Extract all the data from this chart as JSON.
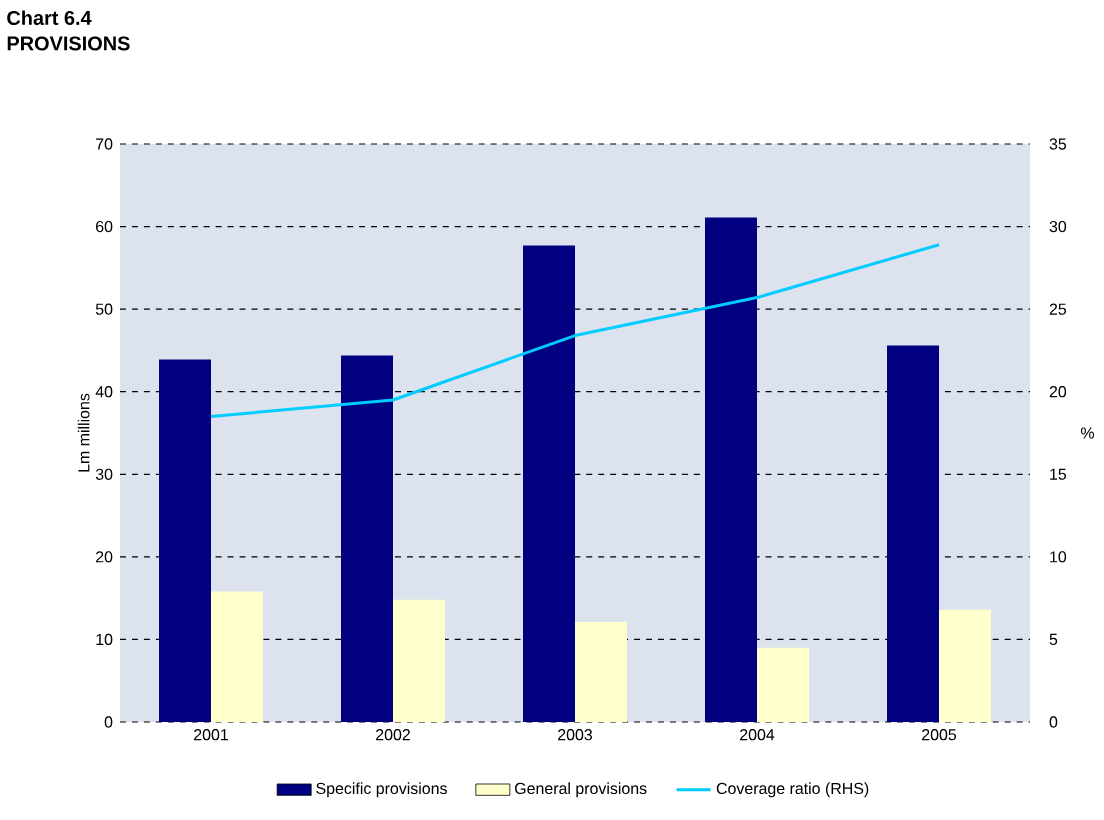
{
  "chart_data": {
    "type": "bar",
    "title": "Chart 6.4",
    "subtitle": "PROVISIONS",
    "ylabel": "Lm millions",
    "y2label": "%",
    "categories": [
      "2001",
      "2002",
      "2003",
      "2004",
      "2005"
    ],
    "series": [
      {
        "name": "Specific provisions",
        "color": "#000080",
        "values": [
          43.9,
          44.4,
          57.7,
          61.1,
          45.6
        ]
      },
      {
        "name": "General provisions",
        "color": "#ffffcc",
        "values": [
          15.8,
          14.8,
          12.1,
          9.0,
          13.6
        ]
      },
      {
        "name": "Coverage ratio (RHS)",
        "color": "#00ccff",
        "type": "line",
        "axis": "y2",
        "values": [
          18.5,
          19.5,
          23.4,
          25.7,
          28.9
        ]
      }
    ],
    "ylim": [
      0,
      70
    ],
    "yticks": [
      0,
      10,
      20,
      30,
      40,
      50,
      60,
      70
    ],
    "y2lim": [
      0,
      35
    ],
    "y2ticks": [
      0,
      5,
      10,
      15,
      20,
      25,
      30,
      35
    ],
    "grid": "y",
    "legend": "bottom",
    "marker": "none",
    "line_style": "solid"
  }
}
